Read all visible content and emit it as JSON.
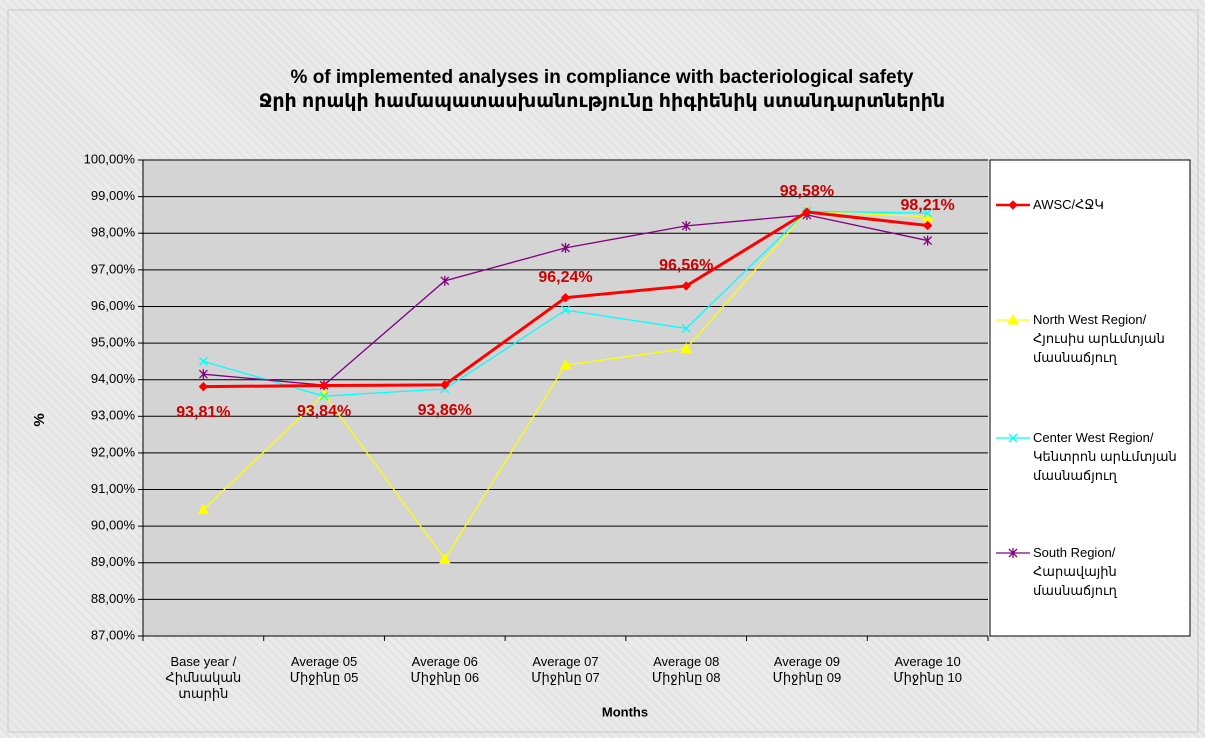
{
  "chart_data": {
    "type": "line",
    "title": "% of implemented analyses in compliance with  bacteriological safety",
    "subtitle": "Ջրի որակի համապատասխանությունը հիգիենիկ ստանդարտներին",
    "x_label": "Months",
    "y_label": "%",
    "categories": [
      "Base year / Հիմնական տարին",
      "Average 05 Միջինը 05",
      "Average 06 Միջինը 06",
      "Average 07 Միջինը 07",
      "Average 08 Միջինը 08",
      "Average 09 Միջինը 09",
      "Average 10 Միջինը 10"
    ],
    "series": [
      {
        "name": "AWSC/ՀՋԿ",
        "color": "#ff0000",
        "marker": "diamond",
        "values": [
          93.81,
          93.84,
          93.86,
          96.24,
          96.56,
          98.58,
          98.21
        ],
        "value_labels": [
          "93,81%",
          "93,84%",
          "93,86%",
          "96,24%",
          "96,56%",
          "98,58%",
          "98,21%"
        ]
      },
      {
        "name": "North West Region/ Հյուսիս արևմտյան մասնաճյուղ",
        "color": "#ffff00",
        "marker": "triangle",
        "values": [
          90.45,
          93.6,
          89.1,
          94.4,
          94.85,
          98.6,
          98.45
        ]
      },
      {
        "name": "Center West Region/ Կենտրոն արևմտյան մասնաճյուղ",
        "color": "#00ffff",
        "marker": "x",
        "values": [
          94.5,
          93.55,
          93.75,
          95.9,
          95.4,
          98.6,
          98.55
        ]
      },
      {
        "name": "South Region/ Հարավային մասնաճյուղ",
        "color": "#800080",
        "marker": "asterisk",
        "values": [
          94.15,
          93.85,
          96.7,
          97.6,
          98.2,
          98.5,
          97.8
        ]
      }
    ],
    "ylim": [
      87,
      100
    ],
    "yticks": [
      {
        "value": 87,
        "label": "87,00%"
      },
      {
        "value": 88,
        "label": "88,00%"
      },
      {
        "value": 89,
        "label": "89,00%"
      },
      {
        "value": 90,
        "label": "90,00%"
      },
      {
        "value": 91,
        "label": "91,00%"
      },
      {
        "value": 92,
        "label": "92,00%"
      },
      {
        "value": 93,
        "label": "93,00%"
      },
      {
        "value": 94,
        "label": "94,00%"
      },
      {
        "value": 95,
        "label": "95,00%"
      },
      {
        "value": 96,
        "label": "96,00%"
      },
      {
        "value": 97,
        "label": "97,00%"
      },
      {
        "value": 98,
        "label": "98,00%"
      },
      {
        "value": 99,
        "label": "99,00%"
      },
      {
        "value": 100,
        "label": "100,00%"
      }
    ],
    "grid": true,
    "legend": "right"
  }
}
